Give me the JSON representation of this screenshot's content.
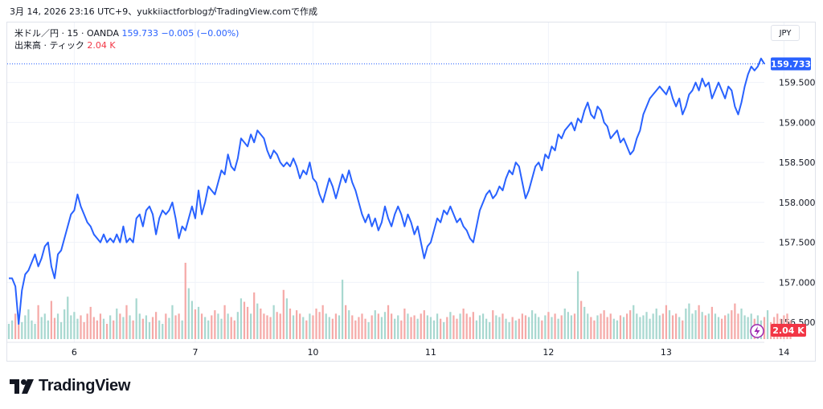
{
  "header": {
    "text": "3月 14, 2026 23:16 UTC+9、yukkiiactforblogがTradingView.comで作成"
  },
  "legend": {
    "symbol": "米ドル／円 · 15 · OANDA",
    "price": "159.733",
    "change": "−0.005 (−0.00%)",
    "volume_label": "出来高 · ティック",
    "volume_value": "2.04 K"
  },
  "currency_button": "JPY",
  "price_tag": "159.733",
  "volume_tag": "2.04 K",
  "logo": {
    "text": "TradingView"
  },
  "colors": {
    "line": "#2962ff",
    "vol_up": "#a8d8d0",
    "vol_down": "#f5aaa8",
    "tag_blue": "#2962ff",
    "tag_red": "#f23645"
  },
  "icons": [
    "tradingview-logo-icon",
    "lightning-icon"
  ],
  "chart_data": {
    "type": "line",
    "title": "",
    "xlabel": "",
    "ylabel": "",
    "ylim": [
      156.25,
      160.25
    ],
    "y_ticks": [
      "156.500",
      "157.000",
      "157.500",
      "158.000",
      "158.500",
      "159.000",
      "159.500"
    ],
    "x_ticks": [
      "6",
      "7",
      "10",
      "11",
      "12",
      "13",
      "14"
    ],
    "last_value": 159.733,
    "series": [
      {
        "values": [
          157.05,
          157.05,
          156.95,
          156.48,
          156.9,
          157.1,
          157.15,
          157.25,
          157.35,
          157.2,
          157.3,
          157.45,
          157.5,
          157.2,
          157.05,
          157.35,
          157.4,
          157.55,
          157.7,
          157.85,
          157.9,
          158.1,
          157.95,
          157.85,
          157.75,
          157.7,
          157.6,
          157.55,
          157.5,
          157.6,
          157.5,
          157.55,
          157.5,
          157.6,
          157.5,
          157.7,
          157.5,
          157.55,
          157.5,
          157.8,
          157.85,
          157.7,
          157.9,
          157.95,
          157.85,
          157.6,
          157.8,
          157.9,
          157.85,
          157.9,
          158.0,
          157.8,
          157.55,
          157.7,
          157.65,
          157.8,
          157.95,
          157.8,
          158.15,
          157.85,
          158.0,
          158.2,
          158.15,
          158.1,
          158.25,
          158.4,
          158.35,
          158.6,
          158.45,
          158.4,
          158.55,
          158.8,
          158.75,
          158.7,
          158.85,
          158.75,
          158.9,
          158.85,
          158.8,
          158.65,
          158.55,
          158.65,
          158.6,
          158.5,
          158.45,
          158.5,
          158.45,
          158.55,
          158.45,
          158.3,
          158.4,
          158.35,
          158.5,
          158.3,
          158.25,
          158.1,
          158.0,
          158.15,
          158.3,
          158.2,
          158.05,
          158.2,
          158.35,
          158.25,
          158.4,
          158.25,
          158.15,
          158.0,
          157.85,
          157.75,
          157.85,
          157.7,
          157.8,
          157.65,
          157.75,
          157.95,
          157.8,
          157.7,
          157.85,
          157.95,
          157.85,
          157.7,
          157.85,
          157.75,
          157.6,
          157.7,
          157.5,
          157.3,
          157.45,
          157.5,
          157.65,
          157.8,
          157.75,
          157.9,
          157.85,
          157.95,
          157.85,
          157.75,
          157.8,
          157.7,
          157.65,
          157.55,
          157.5,
          157.7,
          157.9,
          158.0,
          158.1,
          158.15,
          158.05,
          158.1,
          158.2,
          158.15,
          158.3,
          158.4,
          158.35,
          158.5,
          158.45,
          158.25,
          158.05,
          158.15,
          158.3,
          158.45,
          158.5,
          158.4,
          158.6,
          158.55,
          158.7,
          158.65,
          158.85,
          158.8,
          158.9,
          158.95,
          159.0,
          158.9,
          159.05,
          159.0,
          159.15,
          159.25,
          159.1,
          159.05,
          159.2,
          159.15,
          159.0,
          158.95,
          158.8,
          158.85,
          158.9,
          158.75,
          158.8,
          158.7,
          158.6,
          158.65,
          158.8,
          158.9,
          159.1,
          159.2,
          159.3,
          159.35,
          159.4,
          159.45,
          159.4,
          159.35,
          159.45,
          159.3,
          159.2,
          159.3,
          159.1,
          159.2,
          159.35,
          159.4,
          159.5,
          159.4,
          159.55,
          159.45,
          159.5,
          159.3,
          159.4,
          159.5,
          159.4,
          159.3,
          159.45,
          159.4,
          159.2,
          159.1,
          159.25,
          159.45,
          159.6,
          159.7,
          159.65,
          159.7,
          159.8,
          159.733
        ]
      }
    ]
  },
  "volume_data": {
    "values": [
      18,
      22,
      30,
      25,
      20,
      28,
      35,
      22,
      18,
      40,
      26,
      30,
      22,
      45,
      25,
      30,
      20,
      35,
      50,
      28,
      32,
      24,
      28,
      20,
      30,
      38,
      26,
      22,
      30,
      24,
      18,
      28,
      22,
      36,
      30,
      26,
      40,
      28,
      22,
      48,
      30,
      24,
      28,
      20,
      26,
      32,
      22,
      18,
      30,
      25,
      40,
      28,
      30,
      22,
      90,
      60,
      45,
      35,
      38,
      30,
      26,
      22,
      28,
      34,
      30,
      24,
      40,
      30,
      26,
      22,
      32,
      48,
      44,
      38,
      30,
      55,
      42,
      36,
      30,
      28,
      26,
      40,
      32,
      30,
      58,
      48,
      36,
      28,
      34,
      30,
      26,
      22,
      30,
      28,
      36,
      32,
      40,
      30,
      26,
      24,
      30,
      28,
      70,
      40,
      34,
      28,
      22,
      26,
      30,
      24,
      20,
      28,
      34,
      30,
      26,
      32,
      40,
      30,
      24,
      28,
      22,
      36,
      30,
      26,
      28,
      24,
      30,
      34,
      28,
      26,
      22,
      30,
      24,
      20,
      26,
      32,
      28,
      24,
      30,
      36,
      30,
      26,
      32,
      22,
      28,
      30,
      24,
      20,
      34,
      28,
      26,
      30,
      24,
      20,
      26,
      22,
      24,
      30,
      28,
      26,
      34,
      30,
      26,
      22,
      28,
      32,
      26,
      30,
      24,
      28,
      36,
      32,
      28,
      30,
      80,
      45,
      38,
      30,
      26,
      22,
      28,
      30,
      34,
      26,
      30,
      24,
      22,
      28,
      26,
      30,
      34,
      40,
      30,
      26,
      28,
      32,
      24,
      30,
      36,
      28,
      30,
      40,
      34,
      28,
      30,
      26,
      22,
      36,
      42,
      30,
      34,
      40,
      32,
      28,
      30,
      38,
      30,
      26,
      24,
      28,
      30,
      34,
      42,
      30,
      36,
      28,
      26,
      30,
      24,
      28,
      22,
      26,
      34,
      20,
      26,
      30,
      24,
      28,
      30,
      22
    ]
  }
}
